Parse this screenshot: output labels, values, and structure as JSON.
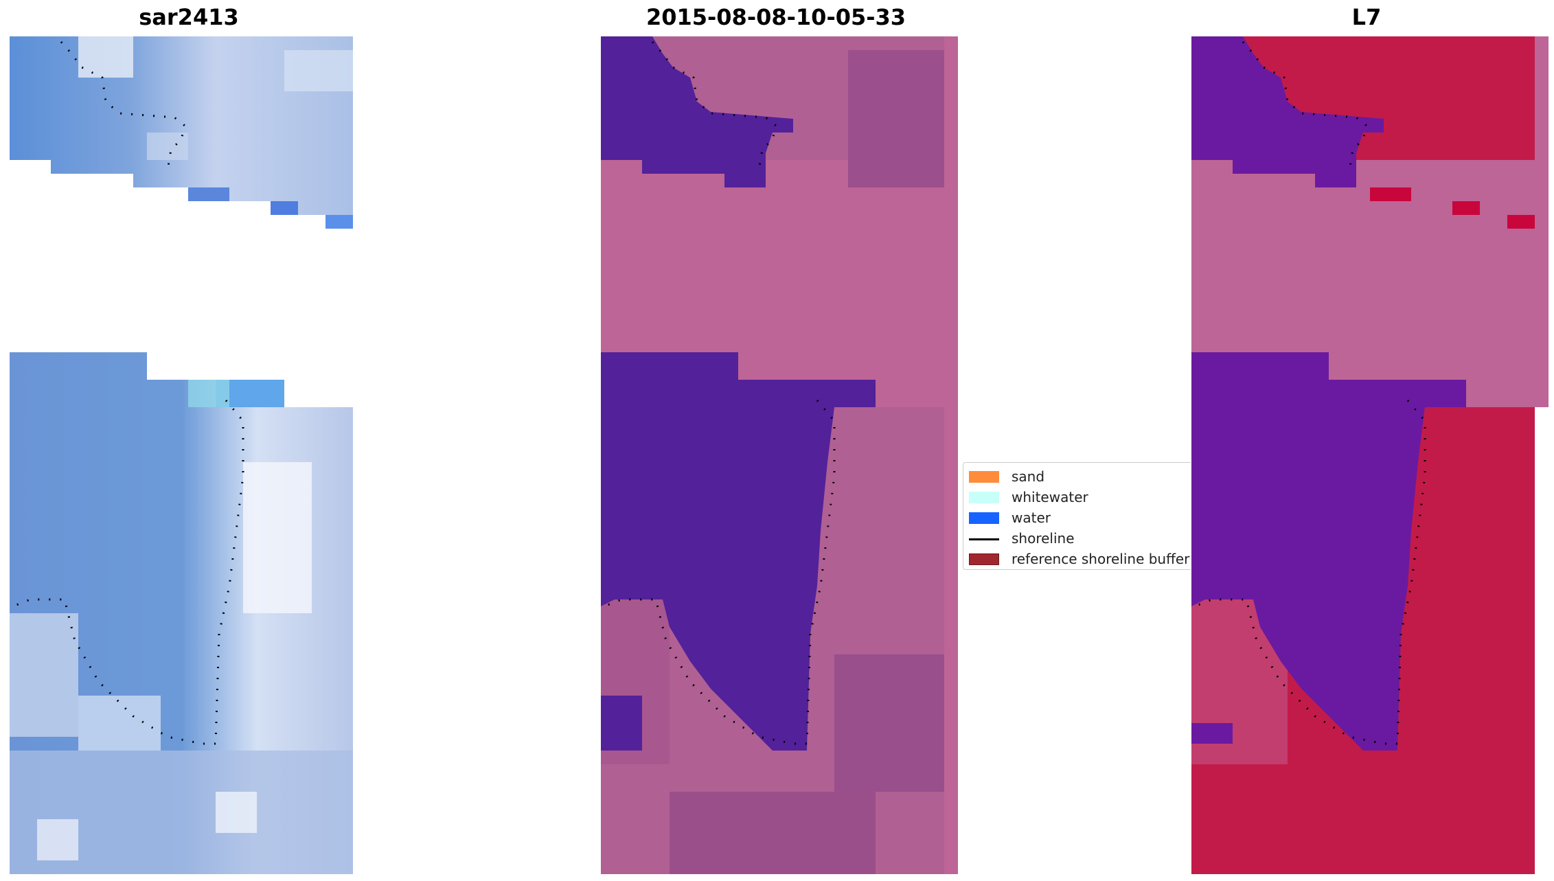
{
  "panels": [
    {
      "title": "sar2413",
      "palette": "rgb"
    },
    {
      "title": "2015-08-08-10-05-33",
      "palette": "classified"
    },
    {
      "title": "L7",
      "palette": "mndwi"
    }
  ],
  "legend": {
    "items": [
      {
        "label": "sand",
        "color": "#ff8c3a",
        "kind": "patch"
      },
      {
        "label": "whitewater",
        "color": "#c8fff8",
        "kind": "patch"
      },
      {
        "label": "water",
        "color": "#1763ff",
        "kind": "patch"
      },
      {
        "label": "shoreline",
        "color": "#000000",
        "kind": "line"
      },
      {
        "label": "reference shoreline buffer",
        "color": "#a0272d",
        "kind": "patch"
      }
    ]
  },
  "colors": {
    "nodata_band": "#bd6596",
    "water_class": "#53219a",
    "sar_blue": "#5b8fd8",
    "l7_red": "#c21b4a",
    "l7_purple": "#6a1aa0"
  }
}
